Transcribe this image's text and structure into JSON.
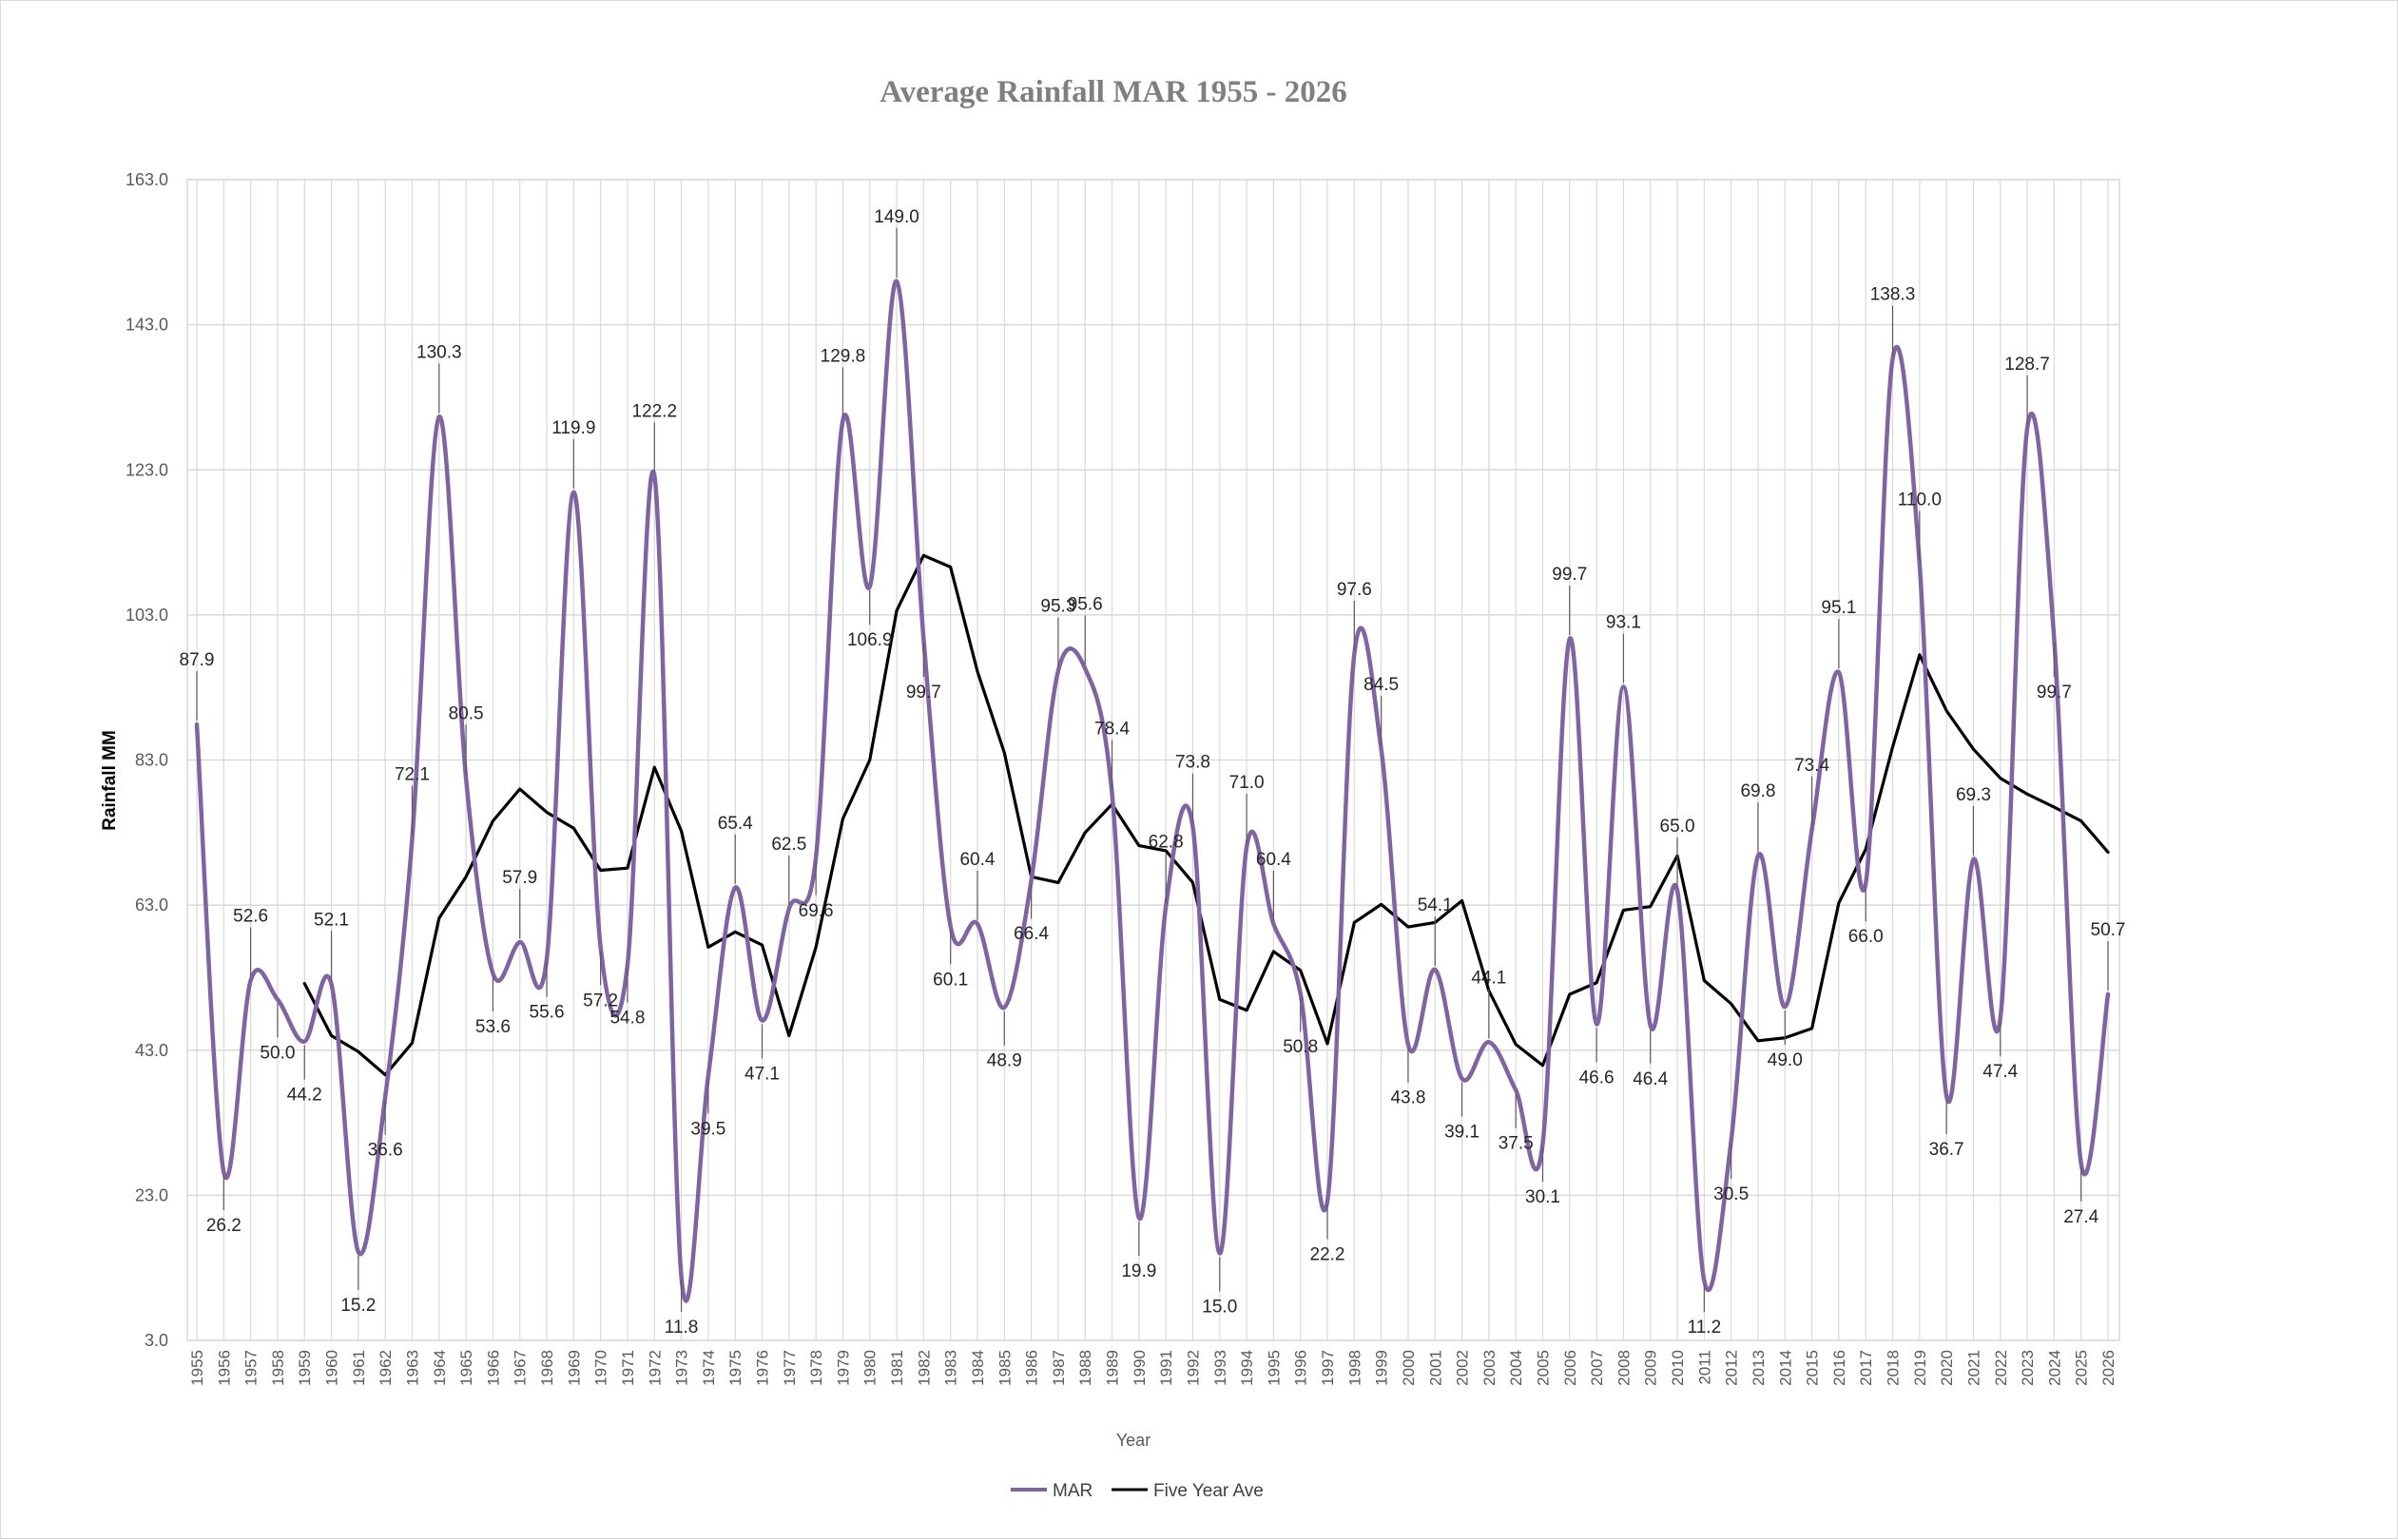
{
  "chart_data": {
    "type": "line",
    "title": "Average Rainfall MAR 1955 - 2026",
    "xlabel": "Year",
    "ylabel": "Rainfall MM",
    "ylim": [
      3.0,
      163.0
    ],
    "yticks": [
      "3.0",
      "23.0",
      "43.0",
      "63.0",
      "83.0",
      "103.0",
      "123.0",
      "143.0",
      "163.0"
    ],
    "grid": true,
    "legend_position": "bottom",
    "x": [
      1955,
      1956,
      1957,
      1958,
      1959,
      1960,
      1961,
      1962,
      1963,
      1964,
      1965,
      1966,
      1967,
      1968,
      1969,
      1970,
      1971,
      1972,
      1973,
      1974,
      1975,
      1976,
      1977,
      1978,
      1979,
      1980,
      1981,
      1982,
      1983,
      1984,
      1985,
      1986,
      1987,
      1988,
      1989,
      1990,
      1991,
      1992,
      1993,
      1994,
      1995,
      1996,
      1997,
      1998,
      1999,
      2000,
      2001,
      2002,
      2003,
      2004,
      2005,
      2006,
      2007,
      2008,
      2009,
      2010,
      2011,
      2012,
      2013,
      2014,
      2015,
      2016,
      2017,
      2018,
      2019,
      2020,
      2021,
      2022,
      2023,
      2024,
      2025,
      2026
    ],
    "series": [
      {
        "name": "MAR",
        "color": "#8064a2",
        "smooth": true,
        "values": [
          87.9,
          26.2,
          52.6,
          50.0,
          44.2,
          52.1,
          15.2,
          36.6,
          72.1,
          130.3,
          80.5,
          53.6,
          57.9,
          55.6,
          119.9,
          57.2,
          54.8,
          122.2,
          11.8,
          39.5,
          65.4,
          47.1,
          62.5,
          69.6,
          129.8,
          106.9,
          149.0,
          99.7,
          60.1,
          60.4,
          48.9,
          66.4,
          95.3,
          95.6,
          78.4,
          19.9,
          62.8,
          73.8,
          15.0,
          71.0,
          60.4,
          50.8,
          22.2,
          97.6,
          84.5,
          43.8,
          54.1,
          39.1,
          44.1,
          37.5,
          30.1,
          99.7,
          46.6,
          93.1,
          46.4,
          65.0,
          11.2,
          30.5,
          69.8,
          49.0,
          73.4,
          95.1,
          66.0,
          138.3,
          110.0,
          36.7,
          69.3,
          47.4,
          128.7,
          99.7,
          27.4,
          50.7
        ],
        "labels": [
          "87.9",
          "26.2",
          "52.6",
          "50.0",
          "44.2",
          "52.1",
          "15.2",
          "36.6",
          "72.1",
          "130.3",
          "80.5",
          "53.6",
          "57.9",
          "55.6",
          "119.9",
          "57.2",
          "54.8",
          "122.2",
          "11.8",
          "39.5",
          "65.4",
          "47.1",
          "62.5",
          "69.6",
          "129.8",
          "106.9",
          "149.0",
          "99.7",
          "60.1",
          "60.4",
          "48.9",
          "66.4",
          "95.3",
          "95.6",
          "78.4",
          "19.9",
          "62.8",
          "73.8",
          "15.0",
          "71.0",
          "60.4",
          "50.8",
          "22.2",
          "97.6",
          "84.5",
          "43.8",
          "54.1",
          "39.1",
          "44.1",
          "37.5",
          "30.1",
          "99.7",
          "46.6",
          "93.1",
          "46.4",
          "65.0",
          "11.2",
          "30.5",
          "69.8",
          "49.0",
          "73.4",
          "95.1",
          "66.0",
          "138.3",
          "110.0",
          "36.7",
          "69.3",
          "47.4",
          "128.7",
          "99.7",
          "27.4",
          "50.7"
        ]
      },
      {
        "name": "Five Year Ave",
        "color": "#000000",
        "smooth": false,
        "values": [
          null,
          null,
          null,
          null,
          52.2,
          45.0,
          42.8,
          39.6,
          44.0,
          61.2,
          66.9,
          74.6,
          79.0,
          75.8,
          73.6,
          67.8,
          68.1,
          82.0,
          73.2,
          57.2,
          59.3,
          57.5,
          45.0,
          57.2,
          74.9,
          83.0,
          103.6,
          111.2,
          109.6,
          95.2,
          84.0,
          66.9,
          66.1,
          73.0,
          76.9,
          71.2,
          70.5,
          66.1,
          50.0,
          48.5,
          56.6,
          54.0,
          43.9,
          60.6,
          63.1,
          60.0,
          60.6,
          63.6,
          51.2,
          43.8,
          40.9,
          50.7,
          52.3,
          62.3,
          62.8,
          69.8,
          52.6,
          49.4,
          44.3,
          44.7,
          46.0,
          63.3,
          70.7,
          84.8,
          97.5,
          89.8,
          84.5,
          80.5,
          78.3,
          76.5,
          74.6,
          70.3
        ]
      }
    ]
  }
}
